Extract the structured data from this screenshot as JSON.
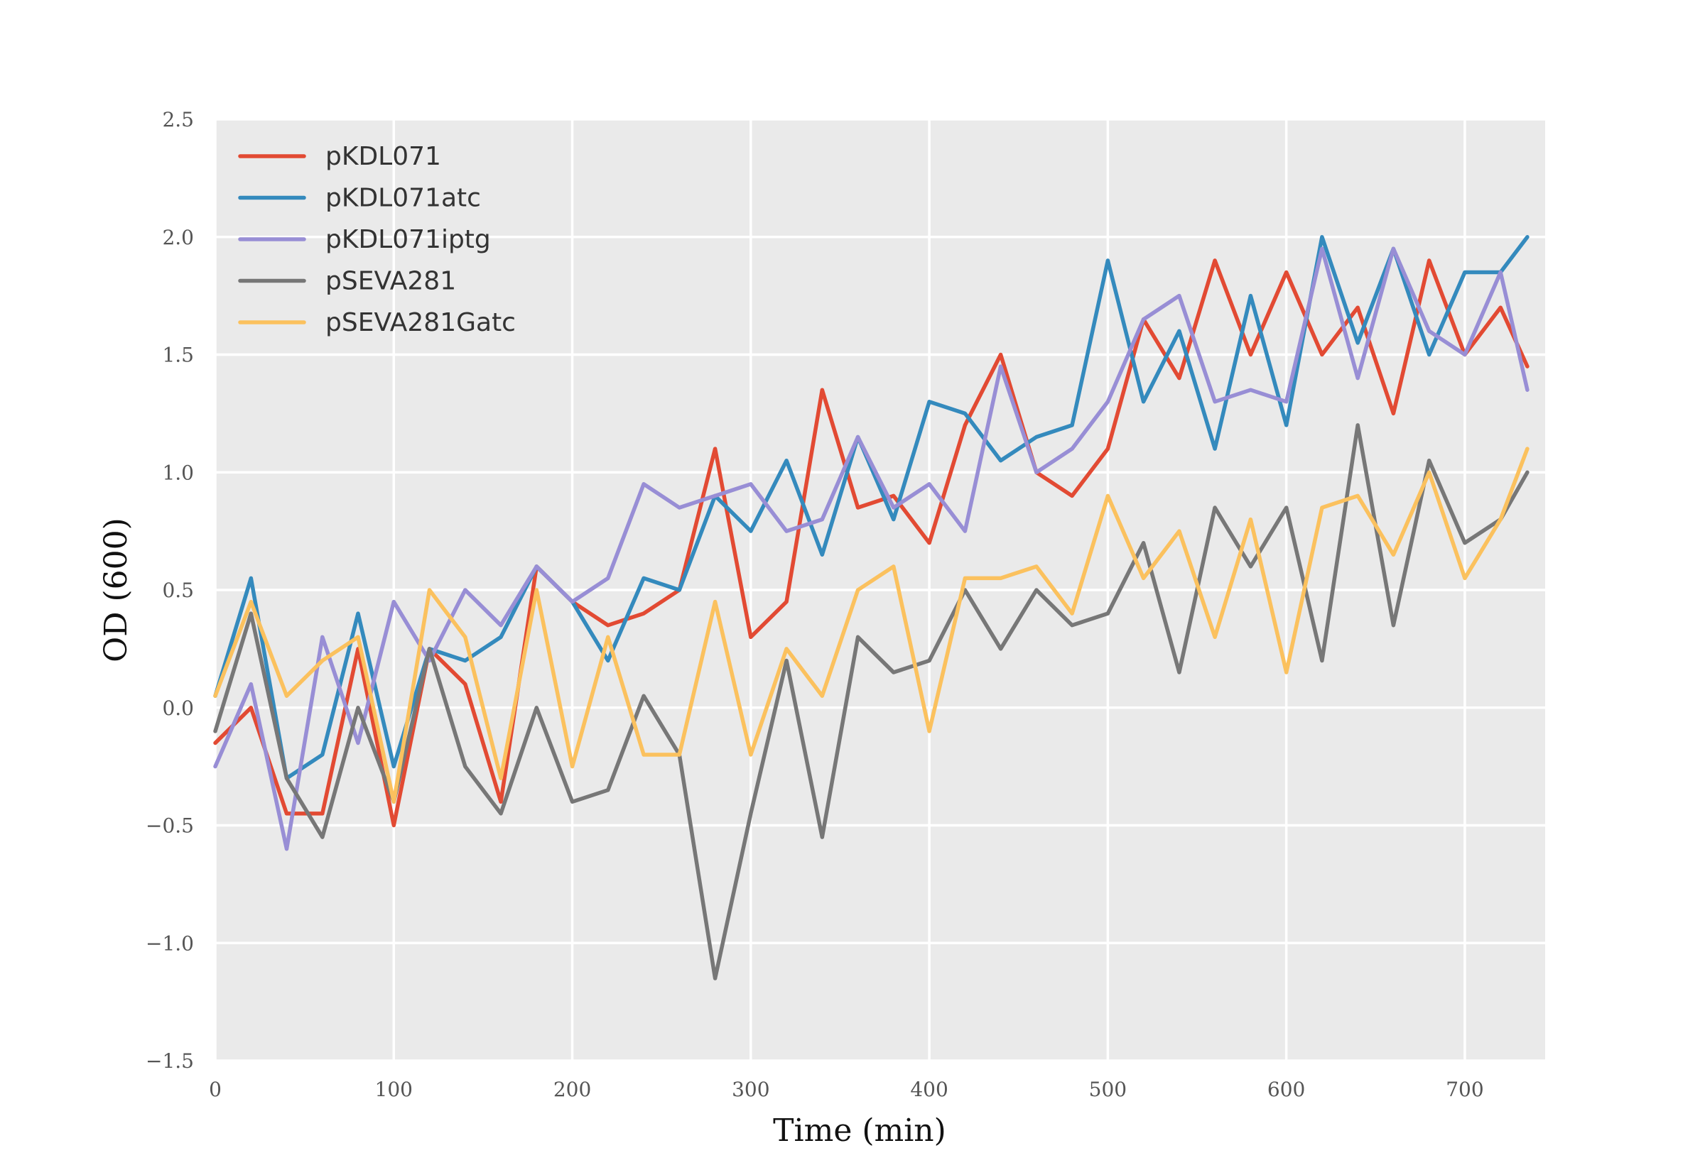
{
  "chart_data": {
    "type": "line",
    "title": "",
    "xlabel": "Time (min)",
    "ylabel": "OD (600)",
    "xlim": [
      0,
      745
    ],
    "ylim": [
      -1.5,
      2.5
    ],
    "xticks": [
      0,
      100,
      200,
      300,
      400,
      500,
      600,
      700
    ],
    "xtick_labels": [
      "0",
      "100",
      "200",
      "300",
      "400",
      "500",
      "600",
      "700"
    ],
    "yticks": [
      -1.5,
      -1.0,
      -0.5,
      0.0,
      0.5,
      1.0,
      1.5,
      2.0,
      2.5
    ],
    "ytick_labels": [
      "−1.5",
      "−1.0",
      "−0.5",
      "0.0",
      "0.5",
      "1.0",
      "1.5",
      "2.0",
      "2.5"
    ],
    "grid": true,
    "legend_position": "top-left",
    "x": [
      0,
      20,
      40,
      60,
      80,
      100,
      120,
      140,
      160,
      180,
      200,
      220,
      240,
      260,
      280,
      300,
      320,
      340,
      360,
      380,
      400,
      420,
      440,
      460,
      480,
      500,
      520,
      540,
      560,
      580,
      600,
      620,
      640,
      660,
      680,
      700,
      720,
      735
    ],
    "series": [
      {
        "name": "pKDL071",
        "color": "#E24A33",
        "values": [
          -0.15,
          0.0,
          -0.45,
          -0.45,
          0.25,
          -0.5,
          0.25,
          0.1,
          -0.4,
          0.6,
          0.45,
          0.35,
          0.4,
          0.5,
          1.1,
          0.3,
          0.45,
          1.35,
          0.85,
          0.9,
          0.7,
          1.2,
          1.5,
          1.0,
          0.9,
          1.1,
          1.65,
          1.4,
          1.9,
          1.5,
          1.85,
          1.5,
          1.7,
          1.25,
          1.9,
          1.5,
          1.7,
          1.45
        ]
      },
      {
        "name": "pKDL071atc",
        "color": "#348ABD",
        "values": [
          0.05,
          0.55,
          -0.3,
          -0.2,
          0.4,
          -0.25,
          0.25,
          0.2,
          0.3,
          0.6,
          0.45,
          0.2,
          0.55,
          0.5,
          0.9,
          0.75,
          1.05,
          0.65,
          1.15,
          0.8,
          1.3,
          1.25,
          1.05,
          1.15,
          1.2,
          1.9,
          1.3,
          1.6,
          1.1,
          1.75,
          1.2,
          2.0,
          1.55,
          1.95,
          1.5,
          1.85,
          1.85,
          2.0
        ]
      },
      {
        "name": "pKDL071iptg",
        "color": "#988ED5",
        "values": [
          -0.25,
          0.1,
          -0.6,
          0.3,
          -0.15,
          0.45,
          0.2,
          0.5,
          0.35,
          0.6,
          0.45,
          0.55,
          0.95,
          0.85,
          0.9,
          0.95,
          0.75,
          0.8,
          1.15,
          0.85,
          0.95,
          0.75,
          1.45,
          1.0,
          1.1,
          1.3,
          1.65,
          1.75,
          1.3,
          1.35,
          1.3,
          1.95,
          1.4,
          1.95,
          1.6,
          1.5,
          1.85,
          1.35
        ]
      },
      {
        "name": "pSEVA281",
        "color": "#777777",
        "values": [
          -0.1,
          0.4,
          -0.3,
          -0.55,
          0.0,
          -0.4,
          0.25,
          -0.25,
          -0.45,
          0.0,
          -0.4,
          -0.35,
          0.05,
          -0.2,
          -1.15,
          -0.45,
          0.2,
          -0.55,
          0.3,
          0.15,
          0.2,
          0.5,
          0.25,
          0.5,
          0.35,
          0.4,
          0.7,
          0.15,
          0.85,
          0.6,
          0.85,
          0.2,
          1.2,
          0.35,
          1.05,
          0.7,
          0.8,
          1.0
        ]
      },
      {
        "name": "pSEVA281Gatc",
        "color": "#FBC15E",
        "values": [
          0.05,
          0.45,
          0.05,
          0.2,
          0.3,
          -0.4,
          0.5,
          0.3,
          -0.3,
          0.5,
          -0.25,
          0.3,
          -0.2,
          -0.2,
          0.45,
          -0.2,
          0.25,
          0.05,
          0.5,
          0.6,
          -0.1,
          0.55,
          0.55,
          0.6,
          0.4,
          0.9,
          0.55,
          0.75,
          0.3,
          0.8,
          0.15,
          0.85,
          0.9,
          0.65,
          1.0,
          0.55,
          0.8,
          1.1
        ]
      }
    ]
  }
}
